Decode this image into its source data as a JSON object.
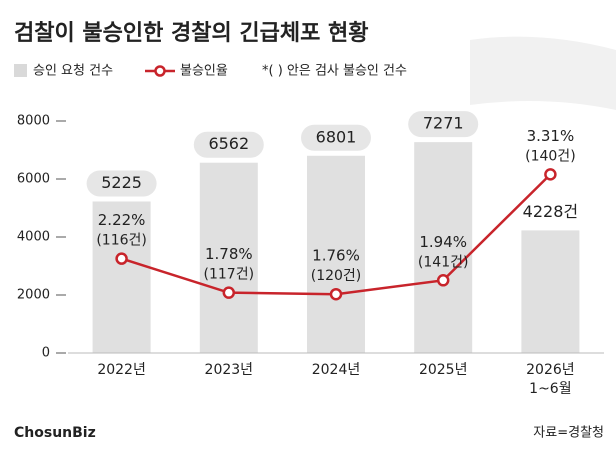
{
  "chart_data": {
    "type": "bar-line",
    "title": "검찰이 불승인한 경찰의 긴급체포 현황",
    "categories": [
      "2022년",
      "2023년",
      "2024년",
      "2025년",
      "2026년\n1~6월"
    ],
    "series": [
      {
        "name": "승인 요청 건수",
        "color": "#e0e0e0",
        "values": [
          5225,
          6562,
          6801,
          7271,
          4228
        ],
        "value_labels": [
          "5225",
          "6562",
          "6801",
          "7271",
          "4228건"
        ]
      },
      {
        "name": "불승인율",
        "color": "#c8242b",
        "axis": "y2",
        "values": [
          2.22,
          1.78,
          1.76,
          1.94,
          3.31
        ],
        "value_labels": [
          "2.22%",
          "1.78%",
          "1.76%",
          "1.94%",
          "3.31%"
        ]
      }
    ],
    "rejections": {
      "values": [
        116,
        117,
        120,
        141,
        140
      ],
      "value_labels": [
        "(116건)",
        "(117건)",
        "(120건)",
        "(141건)",
        "(140건)"
      ]
    },
    "note": "*(   ) 안은 검사 불승인 건수",
    "ylim": [
      0,
      8000
    ],
    "yticks": [
      0,
      2000,
      4000,
      6000,
      8000
    ],
    "y2lim": [
      1,
      4
    ],
    "source": "자료=경찰청",
    "logo": "ChosunBiz"
  }
}
